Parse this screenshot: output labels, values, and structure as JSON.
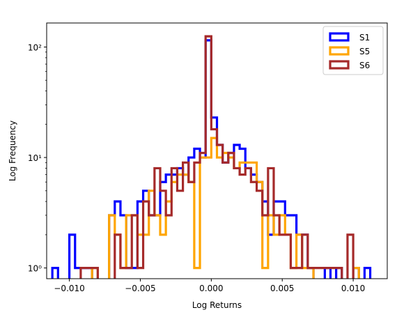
{
  "chart_data": {
    "type": "histogram-step",
    "xlabel": "Log Returns",
    "ylabel": "Log Frequency",
    "yscale": "log",
    "xlim": [
      -0.0116,
      0.0124
    ],
    "ylim": [
      0.8,
      165
    ],
    "bin_width": 0.0004,
    "x_ticks": [
      -0.01,
      -0.005,
      0.0,
      0.005,
      0.01
    ],
    "x_tick_labels": [
      "−0.010",
      "−0.005",
      "0.000",
      "0.005",
      "0.010"
    ],
    "y_ticks": [
      1,
      10,
      100
    ],
    "y_tick_labels": [
      "10⁰",
      "10¹",
      "10²"
    ],
    "legend_position": "upper right",
    "series": [
      {
        "name": "S1",
        "color": "#0000ff",
        "bins": [
          [
            -0.0112,
            -0.0108,
            1
          ],
          [
            -0.01,
            -0.0096,
            2
          ],
          [
            -0.0096,
            -0.0092,
            1
          ],
          [
            -0.0092,
            -0.0088,
            1
          ],
          [
            -0.0088,
            -0.0084,
            1
          ],
          [
            -0.0072,
            -0.0068,
            3
          ],
          [
            -0.0068,
            -0.0064,
            4
          ],
          [
            -0.0064,
            -0.006,
            3
          ],
          [
            -0.006,
            -0.0056,
            1
          ],
          [
            -0.0056,
            -0.0052,
            1
          ],
          [
            -0.0052,
            -0.0048,
            4
          ],
          [
            -0.0048,
            -0.0044,
            5
          ],
          [
            -0.0044,
            -0.004,
            3
          ],
          [
            -0.004,
            -0.0036,
            3
          ],
          [
            -0.0036,
            -0.0032,
            6
          ],
          [
            -0.0032,
            -0.0028,
            7
          ],
          [
            -0.0028,
            -0.0024,
            7
          ],
          [
            -0.0024,
            -0.002,
            8
          ],
          [
            -0.002,
            -0.0016,
            7
          ],
          [
            -0.0016,
            -0.0012,
            10
          ],
          [
            -0.0012,
            -0.0008,
            12
          ],
          [
            -0.0008,
            -0.0004,
            10
          ],
          [
            -0.0004,
            0.0,
            115
          ],
          [
            0.0,
            0.0004,
            23
          ],
          [
            0.0004,
            0.0008,
            13
          ],
          [
            0.0008,
            0.0012,
            9
          ],
          [
            0.0012,
            0.0016,
            11
          ],
          [
            0.0016,
            0.002,
            13
          ],
          [
            0.002,
            0.0024,
            12
          ],
          [
            0.0024,
            0.0028,
            8
          ],
          [
            0.0028,
            0.0032,
            7
          ],
          [
            0.0032,
            0.0036,
            6
          ],
          [
            0.0036,
            0.004,
            4
          ],
          [
            0.004,
            0.0044,
            2
          ],
          [
            0.0044,
            0.0048,
            4
          ],
          [
            0.0048,
            0.0052,
            4
          ],
          [
            0.0052,
            0.0056,
            3
          ],
          [
            0.0056,
            0.006,
            3
          ],
          [
            0.006,
            0.0064,
            2
          ],
          [
            0.0064,
            0.0068,
            2
          ],
          [
            0.0068,
            0.0072,
            1
          ],
          [
            0.008,
            0.0084,
            1
          ],
          [
            0.0088,
            0.0092,
            1
          ],
          [
            0.01,
            0.0104,
            1
          ],
          [
            0.0108,
            0.0112,
            1
          ]
        ]
      },
      {
        "name": "S5",
        "color": "#ffa500",
        "bins": [
          [
            -0.0084,
            -0.008,
            1
          ],
          [
            -0.0072,
            -0.0068,
            3
          ],
          [
            -0.0068,
            -0.0064,
            2
          ],
          [
            -0.0064,
            -0.006,
            1
          ],
          [
            -0.006,
            -0.0056,
            3
          ],
          [
            -0.0056,
            -0.0052,
            3
          ],
          [
            -0.0052,
            -0.0048,
            2
          ],
          [
            -0.0048,
            -0.0044,
            2
          ],
          [
            -0.0044,
            -0.004,
            5
          ],
          [
            -0.004,
            -0.0036,
            3
          ],
          [
            -0.0036,
            -0.0032,
            2
          ],
          [
            -0.0032,
            -0.0028,
            4
          ],
          [
            -0.0028,
            -0.0024,
            6
          ],
          [
            -0.0024,
            -0.002,
            7
          ],
          [
            -0.002,
            -0.0016,
            7
          ],
          [
            -0.0016,
            -0.0012,
            6
          ],
          [
            -0.0012,
            -0.0008,
            1
          ],
          [
            -0.0008,
            -0.0004,
            10
          ],
          [
            -0.0004,
            0.0,
            10
          ],
          [
            0.0,
            0.0004,
            15
          ],
          [
            0.0004,
            0.0008,
            10
          ],
          [
            0.0008,
            0.0012,
            11
          ],
          [
            0.0012,
            0.0016,
            10
          ],
          [
            0.0016,
            0.002,
            8
          ],
          [
            0.002,
            0.0024,
            9
          ],
          [
            0.0024,
            0.0028,
            9
          ],
          [
            0.0028,
            0.0032,
            9
          ],
          [
            0.0032,
            0.0036,
            6
          ],
          [
            0.0036,
            0.004,
            1
          ],
          [
            0.004,
            0.0044,
            3
          ],
          [
            0.0044,
            0.0048,
            2
          ],
          [
            0.0048,
            0.0052,
            3
          ],
          [
            0.0052,
            0.0056,
            2
          ],
          [
            0.0056,
            0.006,
            1
          ],
          [
            0.006,
            0.0064,
            2
          ],
          [
            0.0064,
            0.0068,
            1
          ],
          [
            0.0068,
            0.0072,
            1
          ],
          [
            0.01,
            0.0104,
            1
          ]
        ]
      },
      {
        "name": "S6",
        "color": "#a52a2a",
        "bins": [
          [
            -0.0092,
            -0.0088,
            1
          ],
          [
            -0.0088,
            -0.0084,
            1
          ],
          [
            -0.0084,
            -0.008,
            1
          ],
          [
            -0.0068,
            -0.0064,
            2
          ],
          [
            -0.0064,
            -0.006,
            1
          ],
          [
            -0.006,
            -0.0056,
            1
          ],
          [
            -0.0056,
            -0.0052,
            3
          ],
          [
            -0.0052,
            -0.0048,
            1
          ],
          [
            -0.0048,
            -0.0044,
            4
          ],
          [
            -0.0044,
            -0.004,
            3
          ],
          [
            -0.004,
            -0.0036,
            8
          ],
          [
            -0.0036,
            -0.0032,
            5
          ],
          [
            -0.0032,
            -0.0028,
            3
          ],
          [
            -0.0028,
            -0.0024,
            8
          ],
          [
            -0.0024,
            -0.002,
            5
          ],
          [
            -0.002,
            -0.0016,
            9
          ],
          [
            -0.0016,
            -0.0012,
            6
          ],
          [
            -0.0012,
            -0.0008,
            9
          ],
          [
            -0.0008,
            -0.0004,
            11
          ],
          [
            -0.0004,
            0.0,
            125
          ],
          [
            0.0,
            0.0004,
            18
          ],
          [
            0.0004,
            0.0008,
            13
          ],
          [
            0.0008,
            0.0012,
            9
          ],
          [
            0.0012,
            0.0016,
            11
          ],
          [
            0.0016,
            0.002,
            8
          ],
          [
            0.002,
            0.0024,
            7
          ],
          [
            0.0024,
            0.0028,
            8
          ],
          [
            0.0028,
            0.0032,
            6
          ],
          [
            0.0032,
            0.0036,
            5
          ],
          [
            0.0036,
            0.004,
            3
          ],
          [
            0.004,
            0.0044,
            8
          ],
          [
            0.0044,
            0.0048,
            3
          ],
          [
            0.0048,
            0.0052,
            2
          ],
          [
            0.0052,
            0.0056,
            2
          ],
          [
            0.0056,
            0.006,
            1
          ],
          [
            0.006,
            0.0064,
            1
          ],
          [
            0.0064,
            0.0068,
            2
          ],
          [
            0.0068,
            0.0072,
            1
          ],
          [
            0.0072,
            0.0076,
            1
          ],
          [
            0.0076,
            0.008,
            1
          ],
          [
            0.008,
            0.0084,
            1
          ],
          [
            0.0084,
            0.0088,
            1
          ],
          [
            0.0088,
            0.0092,
            1
          ],
          [
            0.0096,
            0.01,
            2
          ]
        ]
      }
    ]
  }
}
